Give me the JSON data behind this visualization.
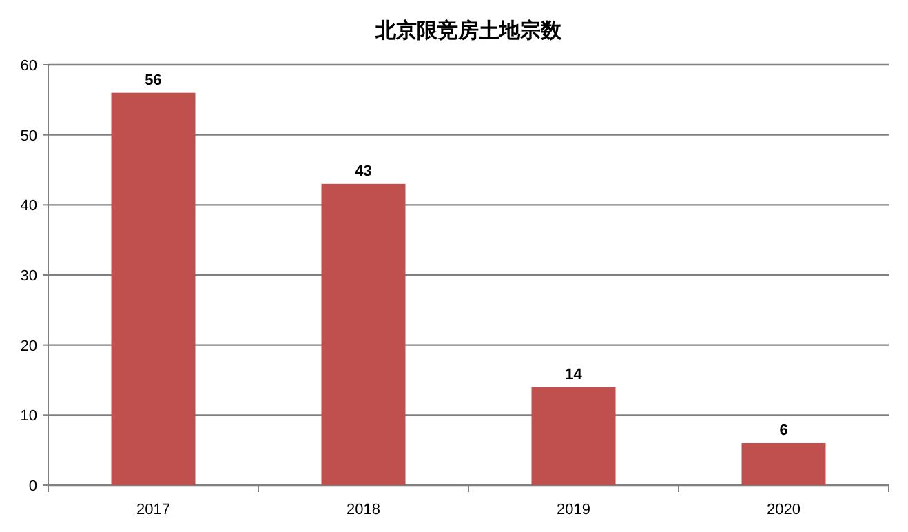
{
  "chart_data": {
    "type": "bar",
    "title": "北京限竞房土地宗数",
    "categories": [
      "2017",
      "2018",
      "2019",
      "2020"
    ],
    "values": [
      56,
      43,
      14,
      6
    ],
    "color": "#c0504d",
    "ylim": [
      0,
      60
    ],
    "yticks": [
      0,
      10,
      20,
      30,
      40,
      50,
      60
    ],
    "grid": "y",
    "data_labels": true
  }
}
